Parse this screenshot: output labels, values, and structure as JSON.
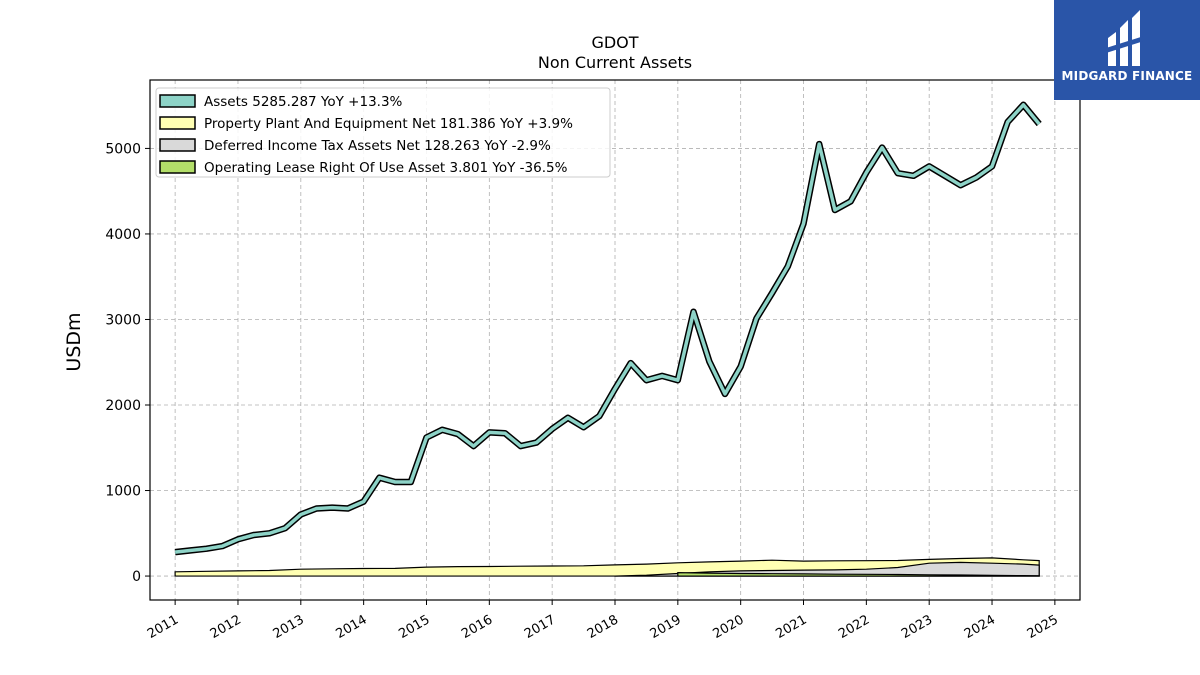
{
  "chart_data": {
    "type": "area",
    "title": "GDOT",
    "subtitle": "Non Current  Assets",
    "xlabel": "",
    "ylabel": "USDm",
    "xlim": [
      2010.6,
      2025.4
    ],
    "ylim": [
      -280,
      5800
    ],
    "yticks": [
      0,
      1000,
      2000,
      3000,
      4000,
      5000
    ],
    "xticks": [
      2011,
      2012,
      2013,
      2014,
      2015,
      2016,
      2017,
      2018,
      2019,
      2020,
      2021,
      2022,
      2023,
      2024,
      2025
    ],
    "grid": true,
    "legend_position": "top-left",
    "series": [
      {
        "name": "Assets",
        "legend": "Assets  5285.287 YoY +13.3%",
        "color": "#8dd3c7",
        "x": [
          2011.0,
          2011.25,
          2011.5,
          2011.75,
          2012.0,
          2012.25,
          2012.5,
          2012.75,
          2013.0,
          2013.25,
          2013.5,
          2013.75,
          2014.0,
          2014.25,
          2014.5,
          2014.75,
          2015.0,
          2015.25,
          2015.5,
          2015.75,
          2016.0,
          2016.25,
          2016.5,
          2016.75,
          2017.0,
          2017.25,
          2017.5,
          2017.75,
          2018.0,
          2018.25,
          2018.5,
          2018.75,
          2019.0,
          2019.25,
          2019.5,
          2019.75,
          2020.0,
          2020.25,
          2020.5,
          2020.75,
          2021.0,
          2021.25,
          2021.5,
          2021.75,
          2022.0,
          2022.25,
          2022.5,
          2022.75,
          2023.0,
          2023.25,
          2023.5,
          2023.75,
          2024.0,
          2024.25,
          2024.5,
          2024.75
        ],
        "values": [
          280,
          300,
          320,
          350,
          430,
          480,
          500,
          560,
          720,
          790,
          800,
          790,
          870,
          1150,
          1100,
          1100,
          1620,
          1710,
          1660,
          1520,
          1680,
          1670,
          1520,
          1560,
          1720,
          1850,
          1740,
          1870,
          2190,
          2490,
          2290,
          2340,
          2290,
          3090,
          2510,
          2130,
          2450,
          3010,
          3310,
          3620,
          4120,
          5050,
          4280,
          4380,
          4720,
          5010,
          4710,
          4680,
          4790,
          4680,
          4570,
          4660,
          4790,
          5310,
          5510,
          5285
        ]
      },
      {
        "name": "Property Plant And Equipment Net",
        "legend": "Property Plant And Equipment Net  181.386 YoY +3.9%",
        "color": "#ffffb3",
        "x": [
          2011.0,
          2011.5,
          2012.0,
          2012.5,
          2013.0,
          2013.5,
          2014.0,
          2014.5,
          2015.0,
          2015.5,
          2016.0,
          2016.5,
          2017.0,
          2017.5,
          2018.0,
          2018.5,
          2019.0,
          2019.5,
          2020.0,
          2020.5,
          2021.0,
          2021.5,
          2022.0,
          2022.5,
          2023.0,
          2023.5,
          2024.0,
          2024.5,
          2024.75
        ],
        "values": [
          50,
          55,
          60,
          65,
          80,
          85,
          88,
          90,
          105,
          110,
          112,
          115,
          118,
          120,
          130,
          140,
          155,
          165,
          175,
          185,
          175,
          178,
          180,
          182,
          195,
          205,
          212,
          190,
          181
        ]
      },
      {
        "name": "Deferred Income Tax Assets Net",
        "legend": "Deferred Income Tax Assets Net  128.263 YoY -2.9%",
        "color": "#d9d9d9",
        "x": [
          2018.0,
          2018.5,
          2019.0,
          2019.5,
          2020.0,
          2020.5,
          2021.0,
          2021.5,
          2022.0,
          2022.5,
          2023.0,
          2023.5,
          2024.0,
          2024.5,
          2024.75
        ],
        "values": [
          0,
          10,
          30,
          50,
          60,
          65,
          70,
          72,
          80,
          100,
          150,
          160,
          150,
          140,
          128
        ]
      },
      {
        "name": "Operating Lease Right Of Use Asset",
        "legend": "Operating Lease Right Of Use Asset  3.801 YoY -36.5%",
        "color": "#b3de69",
        "x": [
          2019.0,
          2019.5,
          2020.0,
          2020.5,
          2021.0,
          2021.5,
          2022.0,
          2022.5,
          2023.0,
          2023.5,
          2024.0,
          2024.5,
          2024.75
        ],
        "values": [
          40,
          35,
          30,
          28,
          25,
          22,
          20,
          18,
          15,
          12,
          8,
          5,
          3.8
        ]
      }
    ]
  },
  "logo": {
    "text": "MIDGARD FINANCE",
    "background": "#2a55a8"
  }
}
